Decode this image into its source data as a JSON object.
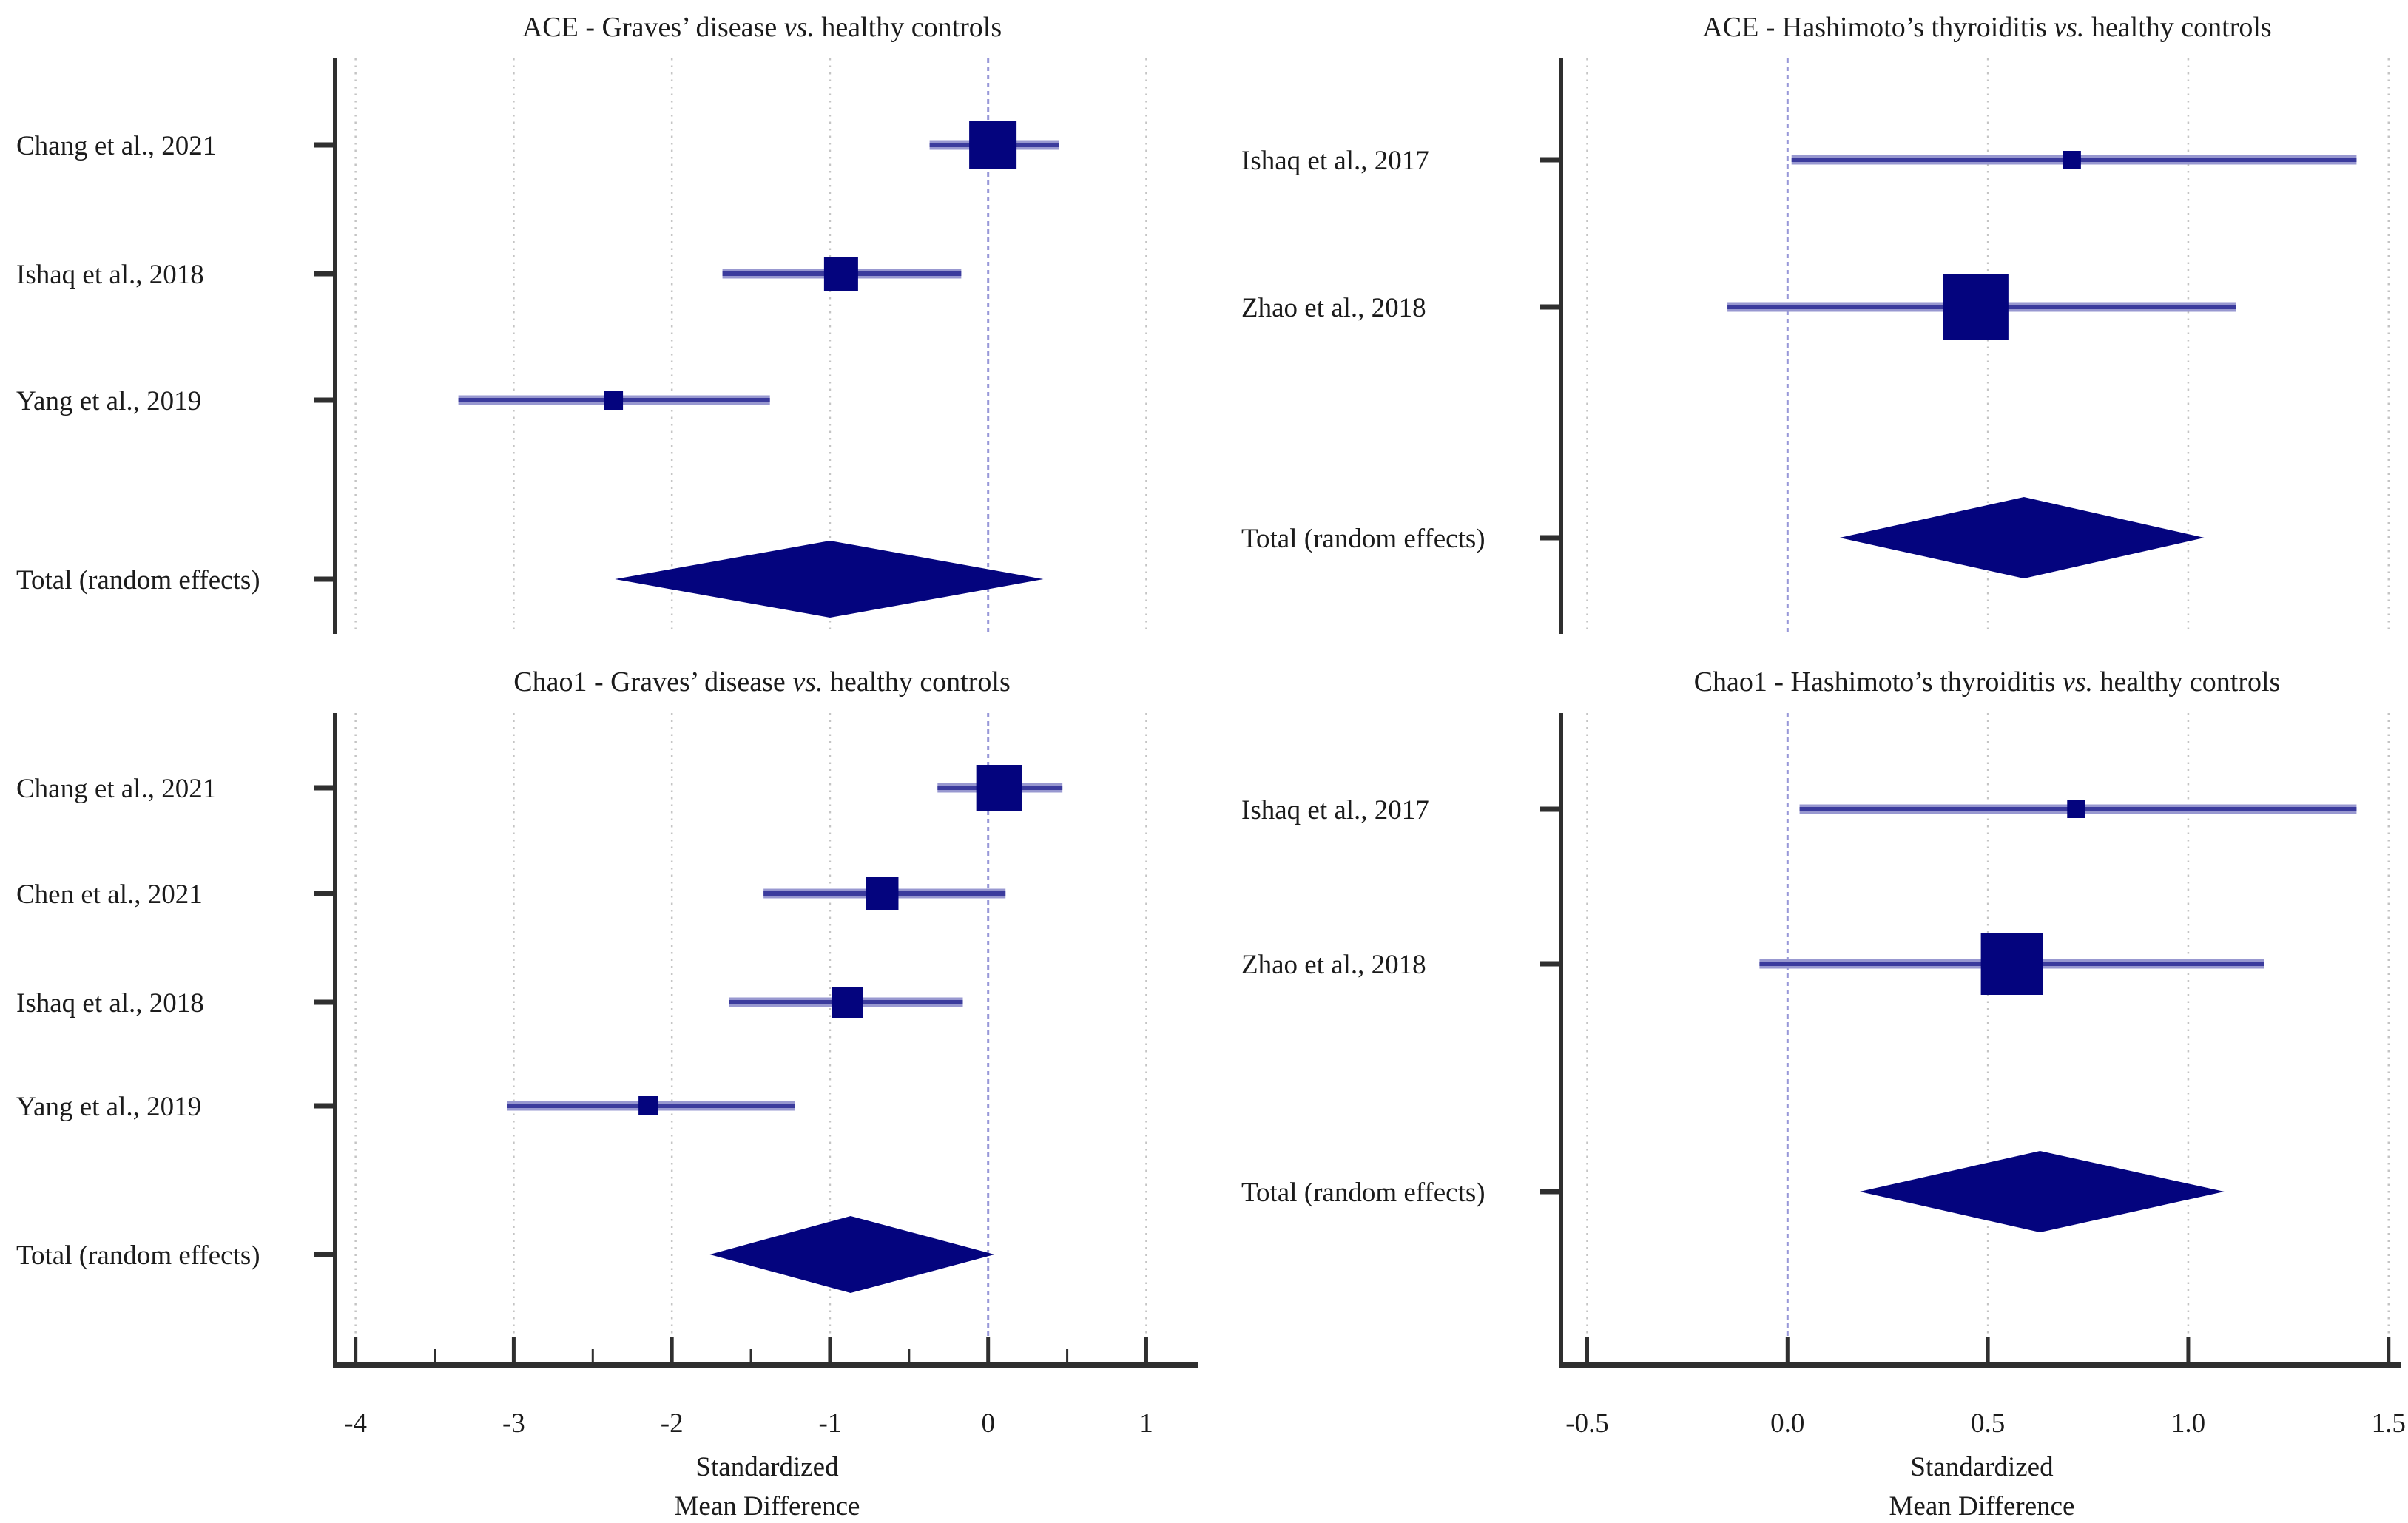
{
  "figure": {
    "colors": {
      "marker_navy": "#04047e",
      "ci_line": "#3b3b9d",
      "ci_halo": "#9898d0",
      "axis": "#2f2f2f",
      "gridline": "#c4c4c4",
      "zero_line": "#9898d8",
      "text": "#1b1b1b"
    }
  },
  "chart_data": [
    {
      "type": "forest",
      "title": {
        "prefix": "ACE - Graves’ disease",
        "vs": " vs. ",
        "suffix": "healthy controls"
      },
      "xlabel": [
        "Standardized",
        "Mean Difference"
      ],
      "xlim": [
        -4.12,
        1.33
      ],
      "xticks": [
        -4,
        -3,
        -2,
        -1,
        0,
        1
      ],
      "xtick_labels": [
        "-4",
        "-3",
        "-2",
        "-1",
        "0",
        "1"
      ],
      "minor_xticks": [
        -3.5,
        -2.5,
        -1.5,
        -0.5,
        0.5
      ],
      "zero_line": 0,
      "grid": "dotted-vertical",
      "legend_position": "none",
      "studies": [
        {
          "label": "Chang et al., 2021",
          "smd": 0.03,
          "ci_low": -0.37,
          "ci_high": 0.45,
          "square_size": 64
        },
        {
          "label": "Ishaq et al., 2018",
          "smd": -0.93,
          "ci_low": -1.68,
          "ci_high": -0.17,
          "square_size": 46
        },
        {
          "label": "Yang et al., 2019",
          "smd": -2.37,
          "ci_low": -3.35,
          "ci_high": -1.38,
          "square_size": 26
        }
      ],
      "total": {
        "label": "Total (random effects)",
        "smd": -1.0,
        "ci_low": -2.36,
        "ci_high": 0.35
      }
    },
    {
      "type": "forest",
      "title": {
        "prefix": "ACE - Hashimoto’s thyroiditis",
        "vs": " vs. ",
        "suffix": "healthy controls"
      },
      "xlabel": [
        "Standardized",
        "Mean Difference"
      ],
      "xlim": [
        -0.56,
        1.53
      ],
      "xticks": [
        -0.5,
        0,
        0.5,
        1,
        1.5
      ],
      "xtick_labels": [
        "-0.5",
        "0.0",
        "0.5",
        "1.0",
        "1.5"
      ],
      "minor_xticks": [],
      "zero_line": 0,
      "grid": "dotted-vertical",
      "legend_position": "none",
      "studies": [
        {
          "label": "Ishaq et al., 2017",
          "smd": 0.71,
          "ci_low": 0.01,
          "ci_high": 1.42,
          "square_size": 24
        },
        {
          "label": "Zhao et al., 2018",
          "smd": 0.47,
          "ci_low": -0.15,
          "ci_high": 1.12,
          "square_size": 88
        }
      ],
      "total": {
        "label": "Total (random effects)",
        "smd": 0.59,
        "ci_low": 0.13,
        "ci_high": 1.04
      }
    },
    {
      "type": "forest",
      "title": {
        "prefix": "Chao1 - Graves’ disease",
        "vs": " vs. ",
        "suffix": "healthy controls"
      },
      "xlabel": [
        "Standardized",
        "Mean Difference"
      ],
      "xlim": [
        -4.12,
        1.33
      ],
      "xticks": [
        -4,
        -3,
        -2,
        -1,
        0,
        1
      ],
      "xtick_labels": [
        "-4",
        "-3",
        "-2",
        "-1",
        "0",
        "1"
      ],
      "minor_xticks": [
        -3.5,
        -2.5,
        -1.5,
        -0.5,
        0.5
      ],
      "zero_line": 0,
      "grid": "dotted-vertical",
      "legend_position": "none",
      "studies": [
        {
          "label": "Chang et al., 2021",
          "smd": 0.07,
          "ci_low": -0.32,
          "ci_high": 0.47,
          "square_size": 62
        },
        {
          "label": "Chen et al., 2021",
          "smd": -0.67,
          "ci_low": -1.42,
          "ci_high": 0.11,
          "square_size": 44
        },
        {
          "label": "Ishaq et al., 2018",
          "smd": -0.89,
          "ci_low": -1.64,
          "ci_high": -0.16,
          "square_size": 42
        },
        {
          "label": "Yang et al., 2019",
          "smd": -2.15,
          "ci_low": -3.04,
          "ci_high": -1.22,
          "square_size": 26
        }
      ],
      "total": {
        "label": "Total (random effects)",
        "smd": -0.87,
        "ci_low": -1.76,
        "ci_high": 0.04
      }
    },
    {
      "type": "forest",
      "title": {
        "prefix": "Chao1 - Hashimoto’s thyroiditis",
        "vs": " vs. ",
        "suffix": "healthy controls"
      },
      "xlabel": [
        "Standardized",
        "Mean Difference"
      ],
      "xlim": [
        -0.56,
        1.53
      ],
      "xticks": [
        -0.5,
        0,
        0.5,
        1,
        1.5
      ],
      "xtick_labels": [
        "-0.5",
        "0.0",
        "0.5",
        "1.0",
        "1.5"
      ],
      "minor_xticks": [],
      "zero_line": 0,
      "grid": "dotted-vertical",
      "legend_position": "none",
      "studies": [
        {
          "label": "Ishaq et al., 2017",
          "smd": 0.72,
          "ci_low": 0.03,
          "ci_high": 1.42,
          "square_size": 24
        },
        {
          "label": "Zhao et al., 2018",
          "smd": 0.56,
          "ci_low": -0.07,
          "ci_high": 1.19,
          "square_size": 84
        }
      ],
      "total": {
        "label": "Total (random effects)",
        "smd": 0.63,
        "ci_low": 0.18,
        "ci_high": 1.09
      }
    }
  ]
}
